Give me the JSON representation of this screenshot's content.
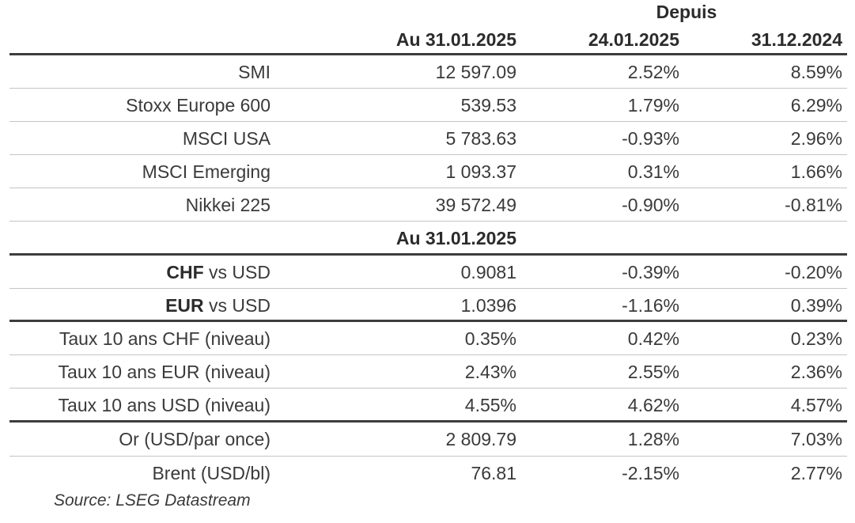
{
  "header": {
    "group_label": "Depuis",
    "col1": "Au 31.01.2025",
    "col2": "24.01.2025",
    "col3": "31.12.2024"
  },
  "indices": [
    {
      "name": "SMI",
      "value": "12 597.09",
      "since_week": "2.52%",
      "since_year": "8.59%"
    },
    {
      "name": "Stoxx Europe 600",
      "value": "539.53",
      "since_week": "1.79%",
      "since_year": "6.29%"
    },
    {
      "name": "MSCI USA",
      "value": "5 783.63",
      "since_week": "-0.93%",
      "since_year": "2.96%"
    },
    {
      "name": "MSCI Emerging",
      "value": "1 093.37",
      "since_week": "0.31%",
      "since_year": "1.66%"
    },
    {
      "name": "Nikkei 225",
      "value": "39 572.49",
      "since_week": "-0.90%",
      "since_year": "-0.81%"
    }
  ],
  "fx_subheader": "Au 31.01.2025",
  "fx": [
    {
      "currency": "CHF",
      "suffix": " vs USD",
      "value": "0.9081",
      "since_week": "-0.39%",
      "since_year": "-0.20%"
    },
    {
      "currency": "EUR",
      "suffix": " vs USD",
      "value": "1.0396",
      "since_week": "-1.16%",
      "since_year": "0.39%"
    }
  ],
  "rates": [
    {
      "name": "Taux 10 ans CHF (niveau)",
      "value": "0.35%",
      "since_week": "0.42%",
      "since_year": "0.23%"
    },
    {
      "name": "Taux 10 ans EUR (niveau)",
      "value": "2.43%",
      "since_week": "2.55%",
      "since_year": "2.36%"
    },
    {
      "name": "Taux 10 ans USD (niveau)",
      "value": "4.55%",
      "since_week": "4.62%",
      "since_year": "4.57%"
    }
  ],
  "commodities": [
    {
      "name": "Or (USD/par once)",
      "value": "2 809.79",
      "since_week": "1.28%",
      "since_year": "7.03%"
    },
    {
      "name": "Brent (USD/bl)",
      "value": "76.81",
      "since_week": "-2.15%",
      "since_year": "2.77%"
    }
  ],
  "source": "Source: LSEG Datastream"
}
